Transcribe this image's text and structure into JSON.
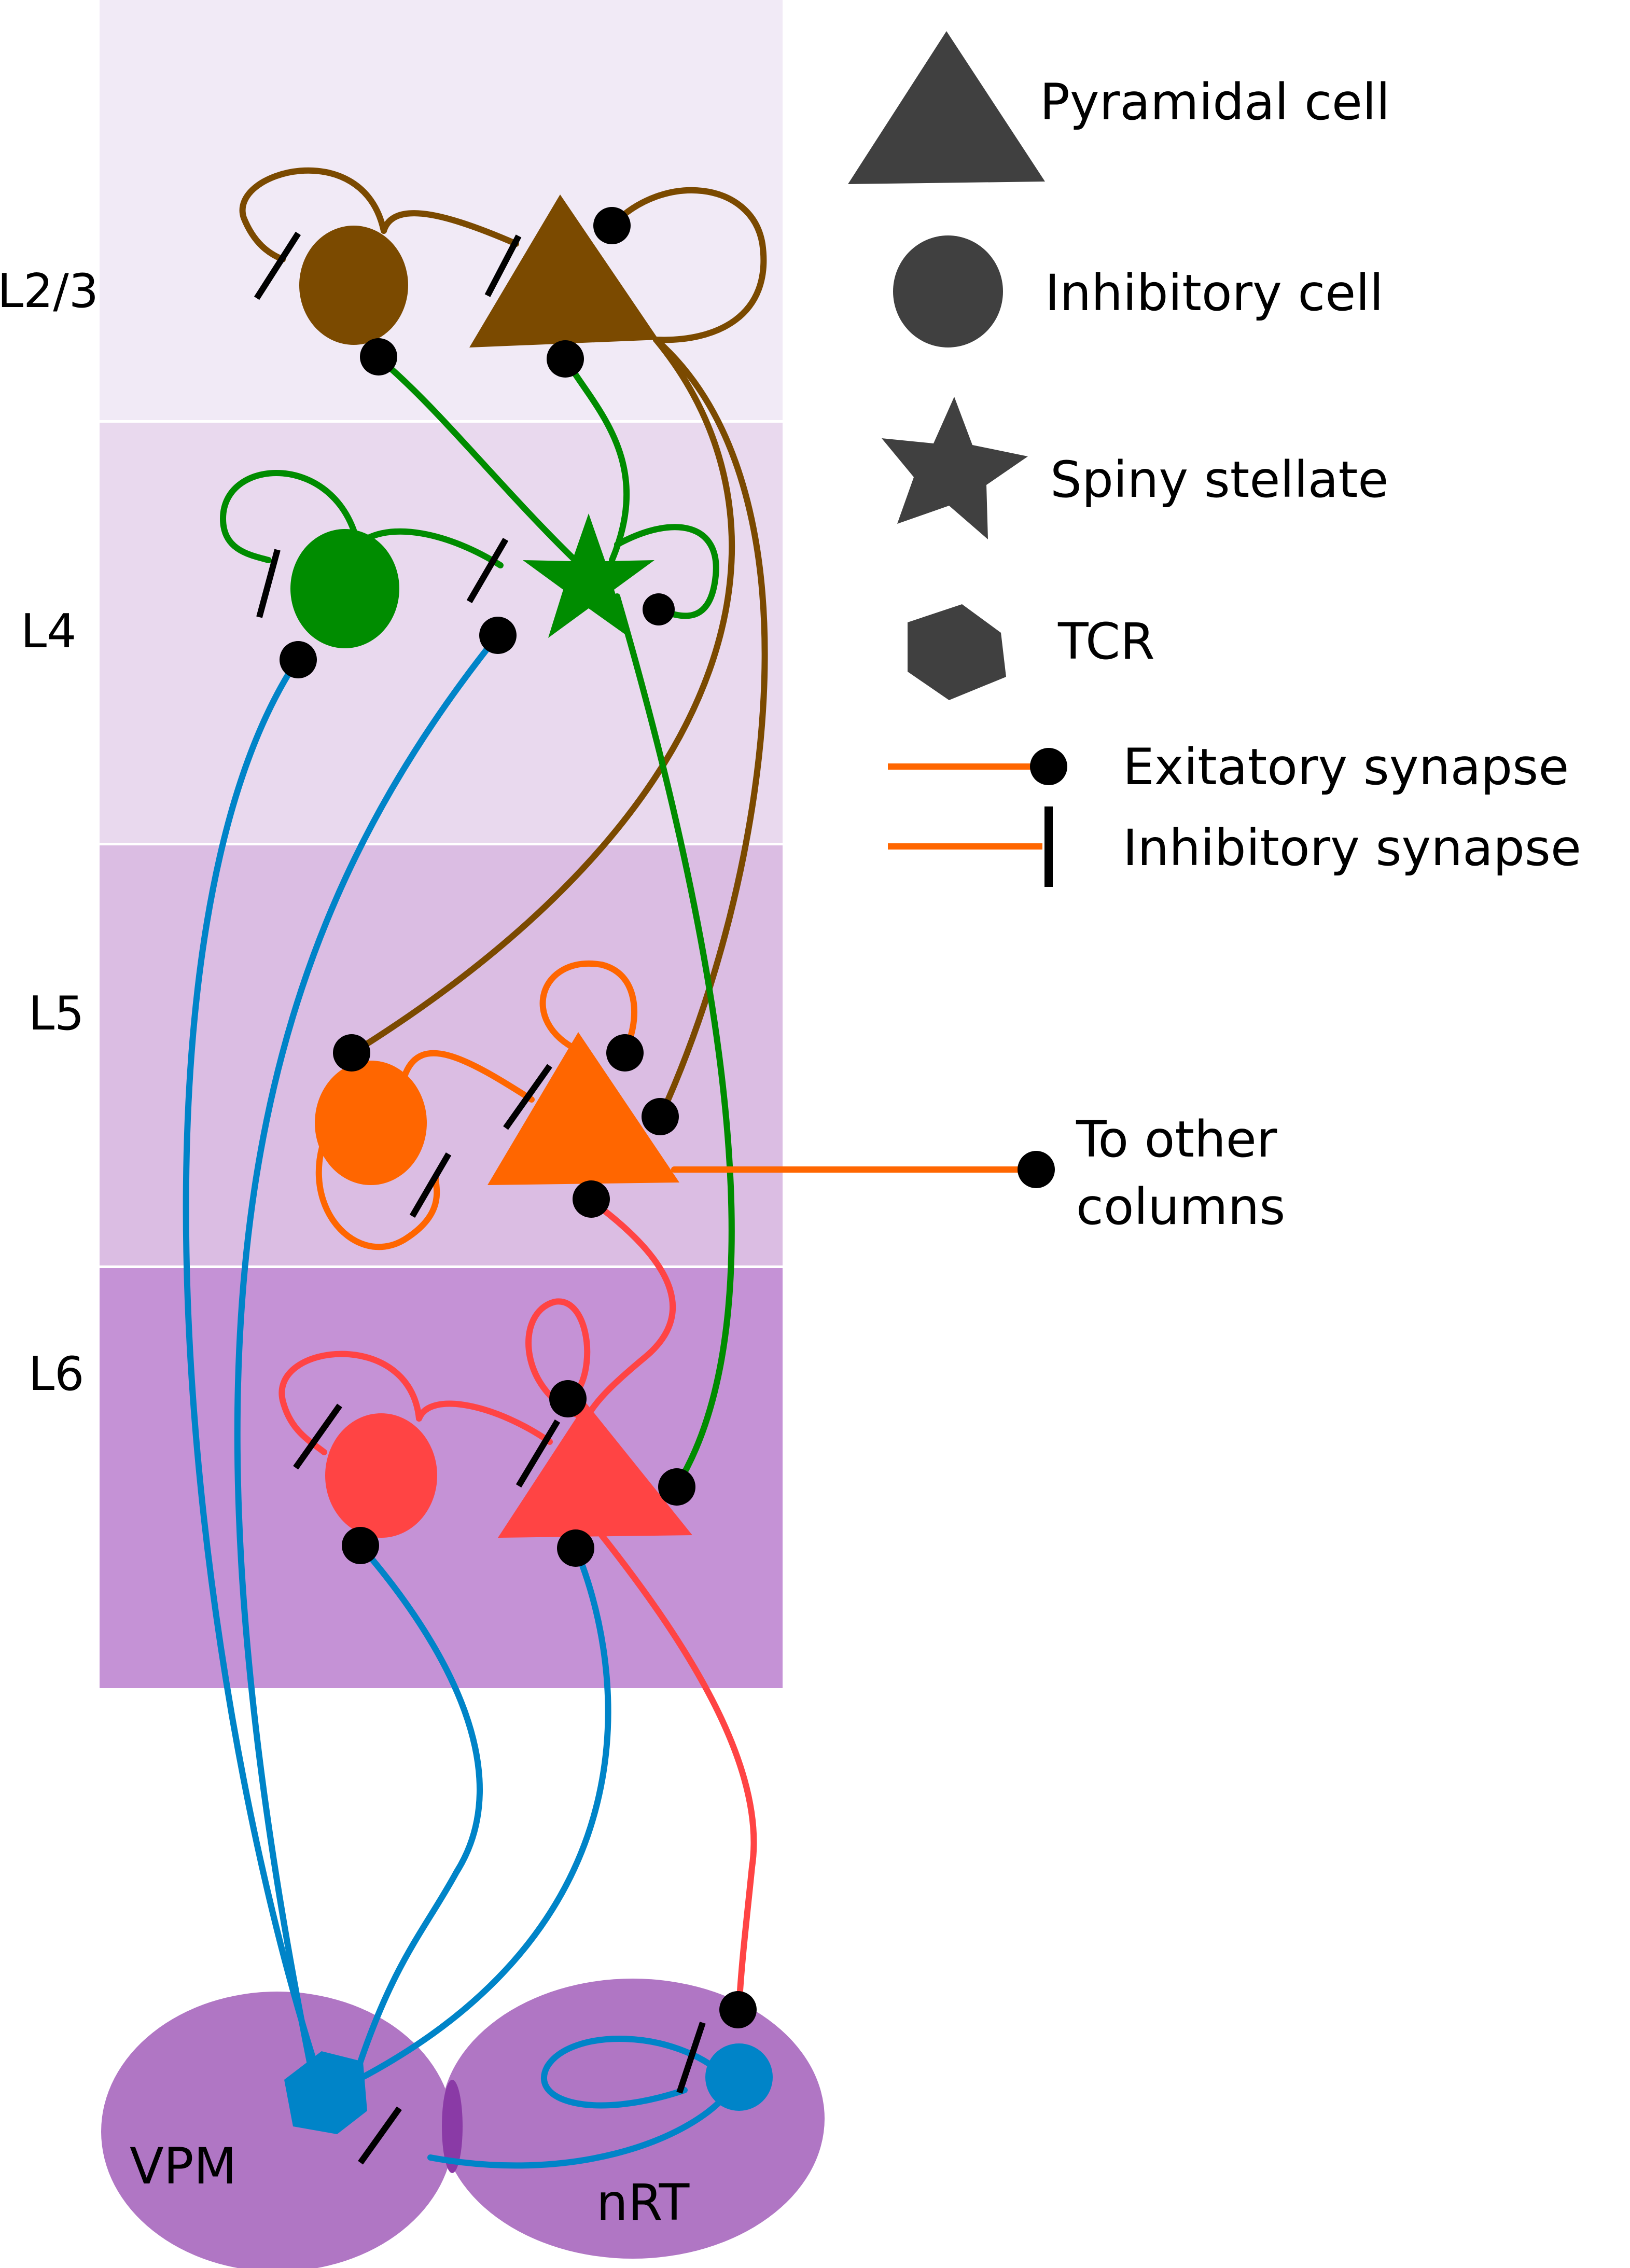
{
  "layers": {
    "l23": {
      "label": "L2/3",
      "color": "#f1eaf6"
    },
    "l4": {
      "label": "L4",
      "color": "#e9d9ee"
    },
    "l5": {
      "label": "L5",
      "color": "#dbbde3"
    },
    "l6": {
      "label": "L6",
      "color": "#c592d6"
    }
  },
  "nuclei": {
    "vpm": {
      "label": "VPM",
      "color": "#b076c4"
    },
    "nrt": {
      "label": "nRT",
      "color": "#b076c4"
    }
  },
  "legend": {
    "pyramidal": "Pyramidal cell",
    "inhibitory": "Inhibitory cell",
    "stellate": "Spiny stellate",
    "tcr": "TCR",
    "excitatory": "Exitatory synapse",
    "inhib_syn": "Inhibitory synapse",
    "shape_color": "#404040"
  },
  "other_columns": {
    "line1": "To other",
    "line2": "columns"
  },
  "colors": {
    "l23": "#7b4a00",
    "l4": "#008c00",
    "l5": "#ff6600",
    "l6": "#ff4444",
    "thalamus": "#0084c8",
    "synapse": "#000000"
  }
}
